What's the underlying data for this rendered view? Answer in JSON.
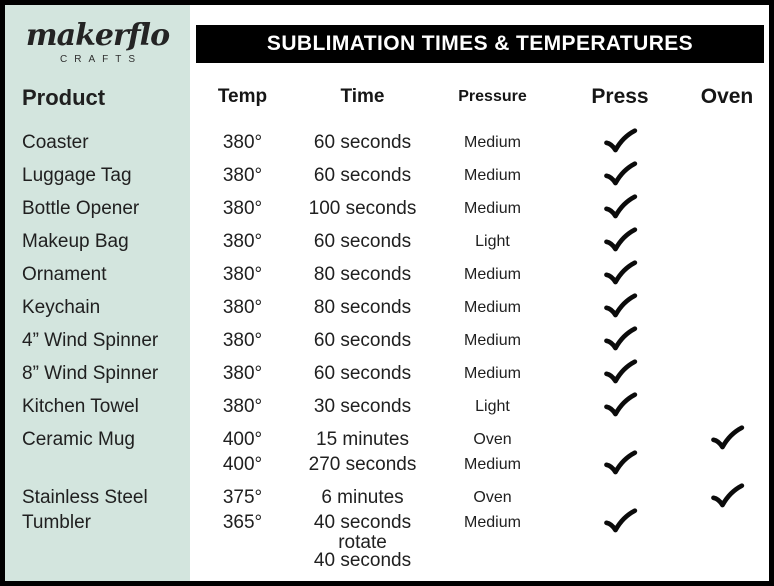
{
  "brand": {
    "logo_text": "makerflo",
    "logo_subtext": "CRAFTS"
  },
  "header": {
    "title": "SUBLIMATION TIMES & TEMPERATURES"
  },
  "columns": {
    "product": "Product",
    "temp": "Temp",
    "time": "Time",
    "pressure": "Pressure",
    "press": "Press",
    "oven": "Oven"
  },
  "icons": {
    "check": "check-icon"
  },
  "colors": {
    "sidebar_bg": "#d3e5de",
    "header_bg": "#000000",
    "header_text": "#ffffff",
    "text": "#202020",
    "border": "#000000",
    "check": "#0b0b0b"
  },
  "table": {
    "rows": [
      {
        "product": "Coaster",
        "lines": [
          {
            "temp": "380°",
            "time": [
              "60 seconds"
            ],
            "pressure": "Medium",
            "press": true,
            "oven": false
          }
        ]
      },
      {
        "product": "Luggage Tag",
        "lines": [
          {
            "temp": "380°",
            "time": [
              "60 seconds"
            ],
            "pressure": "Medium",
            "press": true,
            "oven": false
          }
        ]
      },
      {
        "product": "Bottle Opener",
        "lines": [
          {
            "temp": "380°",
            "time": [
              "100 seconds"
            ],
            "pressure": "Medium",
            "press": true,
            "oven": false
          }
        ]
      },
      {
        "product": "Makeup Bag",
        "lines": [
          {
            "temp": "380°",
            "time": [
              "60 seconds"
            ],
            "pressure": "Light",
            "press": true,
            "oven": false
          }
        ]
      },
      {
        "product": "Ornament",
        "lines": [
          {
            "temp": "380°",
            "time": [
              "80 seconds"
            ],
            "pressure": "Medium",
            "press": true,
            "oven": false
          }
        ]
      },
      {
        "product": "Keychain",
        "lines": [
          {
            "temp": "380°",
            "time": [
              "80 seconds"
            ],
            "pressure": "Medium",
            "press": true,
            "oven": false
          }
        ]
      },
      {
        "product": "4” Wind Spinner",
        "lines": [
          {
            "temp": "380°",
            "time": [
              "60 seconds"
            ],
            "pressure": "Medium",
            "press": true,
            "oven": false
          }
        ]
      },
      {
        "product": "8” Wind Spinner",
        "lines": [
          {
            "temp": "380°",
            "time": [
              "60 seconds"
            ],
            "pressure": "Medium",
            "press": true,
            "oven": false
          }
        ]
      },
      {
        "product": "Kitchen Towel",
        "lines": [
          {
            "temp": "380°",
            "time": [
              "30 seconds"
            ],
            "pressure": "Light",
            "press": true,
            "oven": false
          }
        ]
      },
      {
        "product": "Ceramic Mug",
        "lines": [
          {
            "temp": "400°",
            "time": [
              "15 minutes"
            ],
            "pressure": "Oven",
            "press": false,
            "oven": true
          },
          {
            "temp": "400°",
            "time": [
              "270 seconds"
            ],
            "pressure": "Medium",
            "press": true,
            "oven": false
          }
        ]
      },
      {
        "product": "Stainless Steel Tumbler",
        "lines": [
          {
            "temp": "375°",
            "time": [
              "6 minutes"
            ],
            "pressure": "Oven",
            "press": false,
            "oven": true
          },
          {
            "temp": "365°",
            "time": [
              "40 seconds",
              "rotate",
              "40 seconds"
            ],
            "pressure": "Medium",
            "press": true,
            "oven": false
          }
        ]
      }
    ]
  }
}
